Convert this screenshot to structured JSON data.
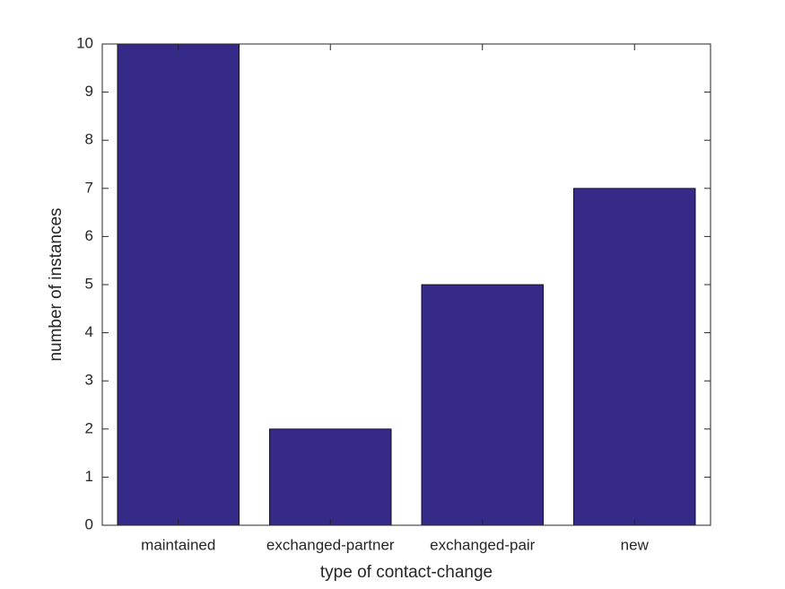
{
  "chart_data": {
    "type": "bar",
    "categories": [
      "maintained",
      "exchanged-partner",
      "exchanged-pair",
      "new"
    ],
    "values": [
      10,
      2,
      5,
      7
    ],
    "color": "#352a87",
    "x_label": "type of contact-change",
    "y_label": "number of instances",
    "ylim": [
      0,
      10
    ],
    "yticks": [
      0,
      1,
      2,
      3,
      4,
      5,
      6,
      7,
      8,
      9,
      10
    ],
    "grid": false
  }
}
